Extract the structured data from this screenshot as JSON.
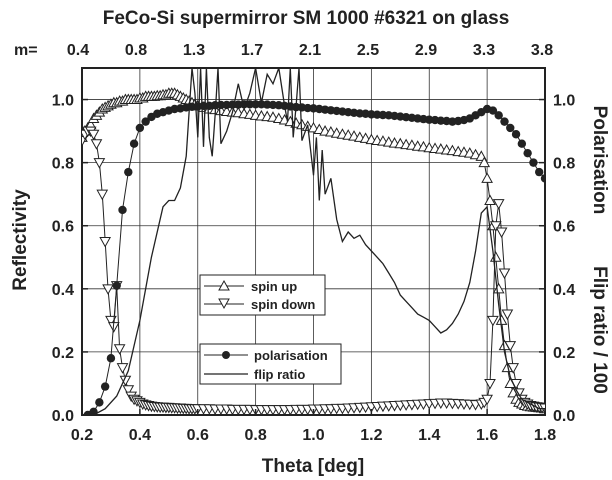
{
  "chart_data": {
    "type": "line",
    "title": "FeCo-Si supermirror SM 1000 #6321 on glass",
    "xlabel": "Theta [deg]",
    "ylabel_left": "Reflectivity",
    "ylabel_right_parts": [
      "Polarisation",
      "Flip ratio / 100"
    ],
    "xlim": [
      0.2,
      1.8
    ],
    "ylim": [
      0.0,
      1.1
    ],
    "x_ticks": [
      0.2,
      0.4,
      0.6,
      0.8,
      1.0,
      1.2,
      1.4,
      1.6,
      1.8
    ],
    "x_tick_labels": [
      "0.2",
      "0.4",
      "0.6",
      "0.8",
      "1.0",
      "1.2",
      "1.4",
      "1.6",
      "1.8"
    ],
    "y_ticks": [
      0.0,
      0.2,
      0.4,
      0.6,
      0.8,
      1.0
    ],
    "y_tick_labels": [
      "0.0",
      "0.2",
      "0.4",
      "0.6",
      "0.8",
      "1.0"
    ],
    "grid": true,
    "top_axis": {
      "prefix": "m=",
      "labels": [
        "0.4",
        "0.8",
        "1.3",
        "1.7",
        "2.1",
        "2.5",
        "2.9",
        "3.3",
        "3.8"
      ]
    },
    "legend": {
      "groups": [
        {
          "items": [
            {
              "label": "spin up",
              "marker": "triangle-up"
            },
            {
              "label": "spin down",
              "marker": "triangle-down"
            }
          ]
        },
        {
          "items": [
            {
              "label": "polarisation",
              "marker": "circle-filled"
            },
            {
              "label": "flip ratio",
              "marker": "line"
            }
          ]
        }
      ]
    },
    "series": [
      {
        "name": "spin up",
        "marker": "triangle-up",
        "x": [
          0.2,
          0.21,
          0.22,
          0.23,
          0.24,
          0.25,
          0.26,
          0.27,
          0.28,
          0.29,
          0.3,
          0.31,
          0.32,
          0.33,
          0.34,
          0.35,
          0.36,
          0.37,
          0.38,
          0.39,
          0.4,
          0.41,
          0.42,
          0.43,
          0.44,
          0.45,
          0.46,
          0.47,
          0.48,
          0.49,
          0.5,
          0.51,
          0.52,
          0.53,
          0.54,
          0.55,
          0.56,
          0.57,
          0.58,
          0.59,
          0.6,
          0.62,
          0.64,
          0.66,
          0.68,
          0.7,
          0.72,
          0.74,
          0.76,
          0.78,
          0.8,
          0.82,
          0.84,
          0.86,
          0.88,
          0.9,
          0.92,
          0.94,
          0.96,
          0.98,
          1.0,
          1.02,
          1.04,
          1.06,
          1.08,
          1.1,
          1.12,
          1.14,
          1.16,
          1.18,
          1.2,
          1.22,
          1.24,
          1.26,
          1.28,
          1.3,
          1.32,
          1.34,
          1.36,
          1.38,
          1.4,
          1.42,
          1.44,
          1.46,
          1.48,
          1.5,
          1.52,
          1.54,
          1.56,
          1.58,
          1.59,
          1.6,
          1.61,
          1.62,
          1.63,
          1.64,
          1.65,
          1.66,
          1.67,
          1.68,
          1.69,
          1.7,
          1.71,
          1.72,
          1.73,
          1.74,
          1.75,
          1.76,
          1.77,
          1.78,
          1.79,
          1.8
        ],
        "y": [
          0.88,
          0.9,
          0.91,
          0.92,
          0.94,
          0.95,
          0.96,
          0.97,
          0.975,
          0.98,
          0.985,
          0.99,
          0.99,
          0.995,
          0.995,
          1.0,
          1.0,
          1.0,
          1.0,
          1.0,
          1.005,
          1.005,
          1.01,
          1.01,
          1.01,
          1.01,
          1.012,
          1.012,
          1.015,
          1.015,
          1.02,
          1.02,
          1.02,
          1.015,
          1.01,
          1.005,
          1.0,
          0.995,
          0.99,
          0.985,
          0.98,
          0.975,
          0.97,
          0.968,
          0.965,
          0.962,
          0.96,
          0.958,
          0.955,
          0.953,
          0.95,
          0.948,
          0.946,
          0.944,
          0.94,
          0.935,
          0.93,
          0.925,
          0.92,
          0.915,
          0.91,
          0.905,
          0.9,
          0.897,
          0.893,
          0.89,
          0.887,
          0.884,
          0.88,
          0.877,
          0.873,
          0.87,
          0.868,
          0.865,
          0.862,
          0.86,
          0.857,
          0.855,
          0.852,
          0.85,
          0.847,
          0.845,
          0.843,
          0.84,
          0.838,
          0.835,
          0.833,
          0.83,
          0.825,
          0.82,
          0.8,
          0.75,
          0.68,
          0.6,
          0.5,
          0.4,
          0.3,
          0.22,
          0.15,
          0.1,
          0.07,
          0.05,
          0.04,
          0.035,
          0.03,
          0.028,
          0.026,
          0.025,
          0.024,
          0.023,
          0.022,
          0.02
        ]
      },
      {
        "name": "spin down",
        "marker": "triangle-down",
        "x": [
          0.2,
          0.21,
          0.22,
          0.23,
          0.24,
          0.25,
          0.26,
          0.27,
          0.28,
          0.29,
          0.3,
          0.31,
          0.32,
          0.33,
          0.34,
          0.35,
          0.36,
          0.37,
          0.38,
          0.39,
          0.4,
          0.41,
          0.42,
          0.43,
          0.44,
          0.45,
          0.46,
          0.47,
          0.48,
          0.49,
          0.5,
          0.51,
          0.52,
          0.53,
          0.54,
          0.55,
          0.56,
          0.57,
          0.58,
          0.59,
          0.6,
          0.62,
          0.64,
          0.66,
          0.68,
          0.7,
          0.72,
          0.74,
          0.76,
          0.78,
          0.8,
          0.82,
          0.84,
          0.86,
          0.88,
          0.9,
          0.92,
          0.94,
          0.96,
          0.98,
          1.0,
          1.02,
          1.04,
          1.06,
          1.08,
          1.1,
          1.12,
          1.14,
          1.16,
          1.18,
          1.2,
          1.22,
          1.24,
          1.26,
          1.28,
          1.3,
          1.32,
          1.34,
          1.36,
          1.38,
          1.4,
          1.42,
          1.44,
          1.46,
          1.48,
          1.5,
          1.52,
          1.54,
          1.56,
          1.58,
          1.59,
          1.6,
          1.61,
          1.62,
          1.63,
          1.64,
          1.65,
          1.66,
          1.67,
          1.68,
          1.69,
          1.7,
          1.71,
          1.72,
          1.73,
          1.74,
          1.75,
          1.76,
          1.77,
          1.78,
          1.79,
          1.8
        ],
        "y": [
          0.87,
          0.89,
          0.9,
          0.9,
          0.89,
          0.86,
          0.8,
          0.7,
          0.55,
          0.4,
          0.3,
          0.28,
          0.41,
          0.21,
          0.15,
          0.11,
          0.08,
          0.06,
          0.05,
          0.045,
          0.04,
          0.035,
          0.032,
          0.03,
          0.028,
          0.027,
          0.026,
          0.025,
          0.025,
          0.024,
          0.024,
          0.023,
          0.023,
          0.022,
          0.022,
          0.021,
          0.021,
          0.02,
          0.02,
          0.02,
          0.02,
          0.02,
          0.02,
          0.019,
          0.019,
          0.019,
          0.018,
          0.018,
          0.018,
          0.018,
          0.017,
          0.017,
          0.017,
          0.017,
          0.017,
          0.017,
          0.017,
          0.018,
          0.018,
          0.018,
          0.019,
          0.019,
          0.02,
          0.02,
          0.021,
          0.021,
          0.022,
          0.023,
          0.024,
          0.025,
          0.026,
          0.027,
          0.028,
          0.029,
          0.03,
          0.031,
          0.032,
          0.033,
          0.034,
          0.035,
          0.036,
          0.037,
          0.038,
          0.038,
          0.037,
          0.036,
          0.035,
          0.034,
          0.033,
          0.035,
          0.04,
          0.05,
          0.1,
          0.3,
          0.6,
          0.67,
          0.58,
          0.45,
          0.32,
          0.22,
          0.15,
          0.1,
          0.07,
          0.05,
          0.04,
          0.035,
          0.03,
          0.028,
          0.026,
          0.025,
          0.024,
          0.022
        ]
      },
      {
        "name": "polarisation",
        "marker": "circle-filled",
        "x": [
          0.22,
          0.24,
          0.26,
          0.28,
          0.3,
          0.32,
          0.34,
          0.36,
          0.38,
          0.4,
          0.42,
          0.44,
          0.46,
          0.48,
          0.5,
          0.52,
          0.54,
          0.56,
          0.58,
          0.6,
          0.62,
          0.64,
          0.66,
          0.68,
          0.7,
          0.72,
          0.74,
          0.76,
          0.78,
          0.8,
          0.82,
          0.84,
          0.86,
          0.88,
          0.9,
          0.92,
          0.94,
          0.96,
          0.98,
          1.0,
          1.02,
          1.04,
          1.06,
          1.08,
          1.1,
          1.12,
          1.14,
          1.16,
          1.18,
          1.2,
          1.22,
          1.24,
          1.26,
          1.28,
          1.3,
          1.32,
          1.34,
          1.36,
          1.38,
          1.4,
          1.42,
          1.44,
          1.46,
          1.48,
          1.5,
          1.52,
          1.54,
          1.56,
          1.58,
          1.6,
          1.62,
          1.64,
          1.66,
          1.68,
          1.7,
          1.72,
          1.74,
          1.76,
          1.78,
          1.8
        ],
        "y": [
          0.0,
          0.01,
          0.04,
          0.09,
          0.18,
          0.41,
          0.65,
          0.77,
          0.86,
          0.91,
          0.93,
          0.945,
          0.955,
          0.96,
          0.965,
          0.97,
          0.972,
          0.975,
          0.977,
          0.978,
          0.98,
          0.98,
          0.982,
          0.983,
          0.983,
          0.984,
          0.984,
          0.985,
          0.985,
          0.985,
          0.985,
          0.984,
          0.983,
          0.982,
          0.98,
          0.978,
          0.976,
          0.975,
          0.973,
          0.972,
          0.97,
          0.968,
          0.966,
          0.964,
          0.962,
          0.96,
          0.958,
          0.956,
          0.955,
          0.953,
          0.952,
          0.951,
          0.95,
          0.948,
          0.946,
          0.944,
          0.942,
          0.94,
          0.938,
          0.936,
          0.935,
          0.933,
          0.932,
          0.93,
          0.932,
          0.935,
          0.94,
          0.95,
          0.96,
          0.97,
          0.965,
          0.95,
          0.93,
          0.91,
          0.89,
          0.86,
          0.83,
          0.8,
          0.77,
          0.75
        ]
      },
      {
        "name": "flip ratio",
        "marker": "line",
        "x": [
          0.24,
          0.28,
          0.32,
          0.36,
          0.4,
          0.44,
          0.48,
          0.5,
          0.52,
          0.54,
          0.56,
          0.58,
          0.59,
          0.6,
          0.61,
          0.62,
          0.63,
          0.64,
          0.65,
          0.66,
          0.67,
          0.68,
          0.7,
          0.72,
          0.74,
          0.76,
          0.78,
          0.8,
          0.82,
          0.84,
          0.86,
          0.88,
          0.9,
          0.91,
          0.92,
          0.93,
          0.94,
          0.95,
          0.96,
          0.98,
          1.0,
          1.01,
          1.02,
          1.03,
          1.04,
          1.06,
          1.08,
          1.1,
          1.12,
          1.14,
          1.16,
          1.18,
          1.2,
          1.22,
          1.24,
          1.26,
          1.28,
          1.3,
          1.32,
          1.34,
          1.36,
          1.38,
          1.4,
          1.42,
          1.44,
          1.46,
          1.48,
          1.5,
          1.52,
          1.54,
          1.56,
          1.58,
          1.6,
          1.62,
          1.64,
          1.66,
          1.68,
          1.7,
          1.72,
          1.74,
          1.76,
          1.78,
          1.8
        ],
        "y": [
          0.0,
          0.02,
          0.06,
          0.14,
          0.3,
          0.5,
          0.66,
          0.68,
          0.68,
          0.72,
          0.82,
          1.1,
          1.02,
          0.88,
          1.1,
          0.85,
          1.1,
          0.88,
          0.82,
          0.95,
          1.1,
          0.86,
          0.9,
          0.96,
          1.05,
          0.97,
          1.02,
          1.1,
          0.99,
          1.08,
          1.05,
          1.1,
          0.98,
          0.93,
          1.1,
          0.88,
          0.98,
          1.1,
          0.87,
          0.92,
          0.76,
          0.88,
          0.68,
          0.84,
          0.7,
          0.75,
          0.62,
          0.55,
          0.58,
          0.56,
          0.57,
          0.54,
          0.52,
          0.5,
          0.48,
          0.45,
          0.42,
          0.38,
          0.36,
          0.34,
          0.32,
          0.31,
          0.3,
          0.28,
          0.26,
          0.27,
          0.29,
          0.32,
          0.36,
          0.42,
          0.52,
          0.64,
          0.66,
          0.52,
          0.35,
          0.2,
          0.12,
          0.08,
          0.05,
          0.04,
          0.03,
          0.02,
          0.02
        ]
      }
    ]
  }
}
